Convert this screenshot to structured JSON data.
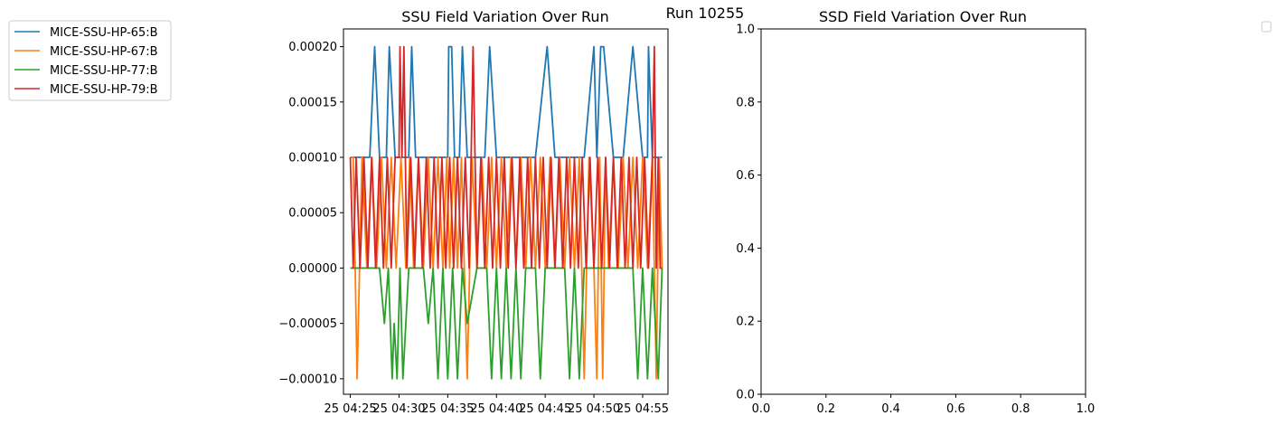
{
  "figure": {
    "suptitle": "Run 10255"
  },
  "legend": {
    "placement": "upper-left-outside",
    "entries": [
      {
        "name": "MICE-SSU-HP-65:B",
        "color": "#1f77b4"
      },
      {
        "name": "MICE-SSU-HP-67:B",
        "color": "#ff7f0e"
      },
      {
        "name": "MICE-SSU-HP-77:B",
        "color": "#2ca02c"
      },
      {
        "name": "MICE-SSU-HP-79:B",
        "color": "#d62728"
      }
    ]
  },
  "chart_data": [
    {
      "type": "line",
      "title": "SSU Field Variation Over Run",
      "xlabel": "",
      "ylabel": "",
      "xlim": [
        -0.7,
        32.6
      ],
      "ylim": [
        -0.000114,
        0.000216
      ],
      "grid": false,
      "x_ticks": [
        0,
        5,
        10,
        15,
        20,
        25,
        30,
        35
      ],
      "x_tick_labels": [
        "25 04:25",
        "25 04:30",
        "25 04:35",
        "25 04:40",
        "25 04:45",
        "25 04:50",
        "25 04:55"
      ],
      "y_ticks": [
        -0.0001,
        -5e-05,
        0,
        5e-05,
        0.0001,
        0.00015,
        0.0002
      ],
      "y_tick_labels": [
        "−0.00010",
        "−0.00005",
        "0.00000",
        "0.00005",
        "0.00010",
        "0.00015",
        "0.00020"
      ],
      "series": [
        {
          "name": "MICE-SSU-HP-65:B",
          "color": "#1f77b4",
          "x": [
            0,
            2,
            2.5,
            3,
            3.7,
            4,
            4.6,
            5,
            6,
            6.3,
            6.7,
            7.2,
            10,
            10.1,
            10.4,
            10.7,
            11.2,
            11.5,
            12,
            13.8,
            14.3,
            15,
            17,
            19,
            20.2,
            21,
            22.5,
            24,
            25,
            25.3,
            25.7,
            26,
            27,
            28,
            29,
            30,
            30.5,
            30.6,
            31,
            32
          ],
          "y": [
            0.0001,
            0.0001,
            0.0002,
            0.0001,
            0.0001,
            0.0002,
            0.0001,
            0.0001,
            0.0001,
            0.0002,
            0.0001,
            0.0001,
            0.0001,
            0.0002,
            0.0002,
            0.0001,
            0.0001,
            0.0002,
            0.0001,
            0.0001,
            0.0002,
            0.0001,
            0.0001,
            0.0001,
            0.0002,
            0.0001,
            0.0001,
            0.0001,
            0.0002,
            0.0001,
            0.0002,
            0.0002,
            0.0001,
            0.0001,
            0.0002,
            0.0001,
            0.0001,
            0.0002,
            0.0001,
            0.0001
          ]
        },
        {
          "name": "MICE-SSU-HP-67:B",
          "color": "#ff7f0e",
          "x": [
            0,
            0.3,
            0.7,
            1.2,
            1.7,
            2.2,
            2.7,
            3.2,
            3.7,
            4.2,
            4.7,
            5.2,
            5.7,
            6.1,
            6.5,
            7,
            7.5,
            8,
            8.5,
            9,
            9.5,
            9.9,
            10.2,
            10.6,
            11,
            11.4,
            12,
            12.5,
            13,
            13.5,
            14,
            14.5,
            15,
            15.5,
            16,
            16.5,
            17,
            17.5,
            18,
            18.5,
            19,
            19.5,
            20,
            20.5,
            21,
            21.5,
            22,
            22.5,
            23,
            23.5,
            24,
            24.5,
            25,
            25.3,
            25.6,
            25.9,
            26.2,
            26.5,
            27,
            27.5,
            28,
            28.5,
            29,
            29.5,
            30,
            30.5,
            31,
            31.4,
            31.7,
            32
          ],
          "y": [
            0.0001,
            0.0001,
            -0.0001,
            0.0001,
            0,
            0.0001,
            0,
            0.0001,
            0,
            0.0001,
            0,
            0.0001,
            0,
            0.0001,
            0,
            0.0001,
            0,
            0.0001,
            0,
            0.0001,
            0,
            0.0001,
            0,
            0.0001,
            0,
            0.0001,
            -0.0001,
            0.0001,
            0,
            0.0001,
            0,
            0.0001,
            0,
            0.0001,
            0,
            0.0001,
            0,
            0.0001,
            0,
            0.0001,
            0,
            0.0001,
            0,
            0.0001,
            0,
            0.0001,
            0,
            0.0001,
            0,
            0.0001,
            -0.0001,
            0.0001,
            0,
            -0.0001,
            0.0001,
            -0.0001,
            0.0001,
            0,
            0.0001,
            0,
            0.0001,
            0,
            0.0001,
            0,
            0.0001,
            0,
            0.0001,
            -0.0001,
            0.0001,
            0
          ]
        },
        {
          "name": "MICE-SSU-HP-77:B",
          "color": "#2ca02c",
          "x": [
            0,
            3,
            3.5,
            3.9,
            4.3,
            4.5,
            4.8,
            5.1,
            5.4,
            6,
            7.5,
            8,
            8.5,
            9,
            9.5,
            10,
            10.5,
            11,
            11.5,
            12,
            13,
            14,
            14.5,
            15,
            15.5,
            16,
            16.5,
            17,
            17.5,
            18,
            19,
            19.5,
            20,
            21,
            22,
            22.5,
            23,
            23.5,
            24,
            25,
            26,
            27,
            28,
            29,
            29.5,
            30,
            30.5,
            31,
            31.6,
            32
          ],
          "y": [
            0,
            0,
            -5e-05,
            0,
            -0.0001,
            -5e-05,
            -0.0001,
            0,
            -0.0001,
            0,
            0,
            -5e-05,
            0,
            -0.0001,
            0,
            -0.0001,
            0,
            -0.0001,
            0,
            -5e-05,
            0,
            0,
            -0.0001,
            0,
            -0.0001,
            0,
            -0.0001,
            0,
            -0.0001,
            0,
            0,
            -0.0001,
            0,
            0,
            0,
            -0.0001,
            0,
            -0.0001,
            0,
            0,
            0,
            0,
            0,
            0,
            -0.0001,
            0,
            -0.0001,
            0,
            -0.0001,
            0
          ]
        },
        {
          "name": "MICE-SSU-HP-79:B",
          "color": "#d62728",
          "x": [
            0,
            0.3,
            0.6,
            1,
            1.4,
            1.8,
            2.2,
            2.6,
            3,
            3.4,
            3.8,
            4.2,
            4.6,
            5,
            5.1,
            5.3,
            5.5,
            5.8,
            6.2,
            6.6,
            7,
            7.4,
            7.8,
            8.2,
            8.6,
            9,
            9.4,
            9.8,
            10.2,
            10.6,
            11,
            11.4,
            11.8,
            12.2,
            12.6,
            13,
            13.4,
            13.8,
            14.2,
            14.6,
            15,
            15.4,
            15.8,
            16.2,
            16.6,
            17,
            17.4,
            17.8,
            18.2,
            18.6,
            19,
            19.4,
            19.8,
            20.2,
            20.6,
            21,
            21.4,
            21.8,
            22.2,
            22.6,
            23,
            23.4,
            23.8,
            24.2,
            24.6,
            25,
            25.4,
            25.8,
            26.2,
            26.6,
            27,
            27.4,
            27.8,
            28.2,
            28.6,
            29,
            29.4,
            29.8,
            30.2,
            30.6,
            31,
            31.2,
            31.4,
            31.6,
            31.8,
            32
          ],
          "y": [
            0.0001,
            0,
            0.0001,
            0,
            0.0001,
            0,
            0.0001,
            0,
            0.0001,
            0,
            0.0001,
            0,
            0.0001,
            0.0001,
            0.0002,
            0.0001,
            0.0002,
            0,
            0.0001,
            0,
            0.0001,
            0,
            0.0001,
            0,
            0.0001,
            0,
            0.0001,
            0,
            0.0001,
            0,
            0.0001,
            0,
            0.0001,
            0,
            0.0002,
            0,
            0.0001,
            0,
            0.0001,
            0,
            0.0001,
            0,
            0.0001,
            0,
            0.0001,
            0,
            0.0001,
            0,
            0.0001,
            0,
            0.0001,
            0,
            0.0001,
            0,
            0.0001,
            0,
            0.0001,
            0,
            0.0001,
            0,
            0.0001,
            0,
            0.0001,
            0,
            0.0001,
            0,
            0.0001,
            0,
            0.0001,
            0,
            0.0001,
            0,
            0.0001,
            0,
            0.0001,
            0,
            0.0001,
            0,
            0.0001,
            0,
            0.0001,
            0.0002,
            0,
            0.0001,
            0,
            0
          ]
        }
      ]
    },
    {
      "type": "line",
      "title": "SSD Field Variation Over Run",
      "xlabel": "",
      "ylabel": "",
      "xlim": [
        0,
        1
      ],
      "ylim": [
        0,
        1
      ],
      "grid": false,
      "x_ticks": [
        0,
        0.2,
        0.4,
        0.6,
        0.8,
        1
      ],
      "x_tick_labels": [
        "0.0",
        "0.2",
        "0.4",
        "0.6",
        "0.8",
        "1.0"
      ],
      "y_ticks": [
        0,
        0.2,
        0.4,
        0.6,
        0.8,
        1
      ],
      "y_tick_labels": [
        "0.0",
        "0.2",
        "0.4",
        "0.6",
        "0.8",
        "1.0"
      ],
      "series": [],
      "legend": {
        "placement": "upper-right-outside",
        "entries": []
      }
    }
  ]
}
